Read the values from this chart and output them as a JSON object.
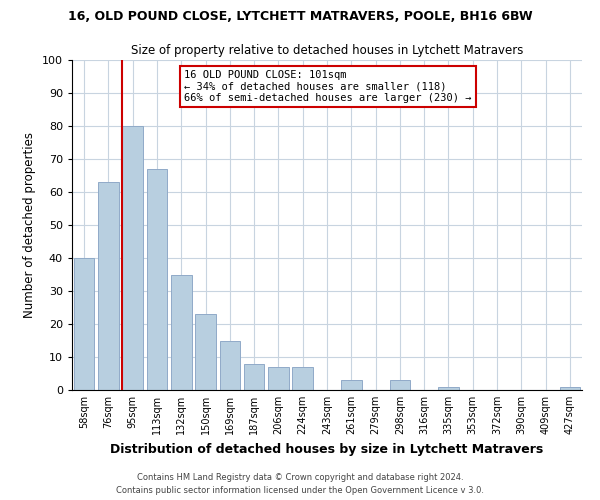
{
  "title1": "16, OLD POUND CLOSE, LYTCHETT MATRAVERS, POOLE, BH16 6BW",
  "title2": "Size of property relative to detached houses in Lytchett Matravers",
  "xlabel": "Distribution of detached houses by size in Lytchett Matravers",
  "ylabel": "Number of detached properties",
  "bar_labels": [
    "58sqm",
    "76sqm",
    "95sqm",
    "113sqm",
    "132sqm",
    "150sqm",
    "169sqm",
    "187sqm",
    "206sqm",
    "224sqm",
    "243sqm",
    "261sqm",
    "279sqm",
    "298sqm",
    "316sqm",
    "335sqm",
    "353sqm",
    "372sqm",
    "390sqm",
    "409sqm",
    "427sqm"
  ],
  "bar_values": [
    40,
    63,
    80,
    67,
    35,
    23,
    15,
    8,
    7,
    7,
    0,
    3,
    0,
    3,
    0,
    1,
    0,
    0,
    0,
    0,
    1
  ],
  "bar_color": "#b8cfe0",
  "bar_edge_color": "#90aac8",
  "ylim": [
    0,
    100
  ],
  "yticks": [
    0,
    10,
    20,
    30,
    40,
    50,
    60,
    70,
    80,
    90,
    100
  ],
  "vline_color": "#cc0000",
  "annotation_title": "16 OLD POUND CLOSE: 101sqm",
  "annotation_line1": "← 34% of detached houses are smaller (118)",
  "annotation_line2": "66% of semi-detached houses are larger (230) →",
  "annotation_box_color": "#ffffff",
  "annotation_box_edge": "#cc0000",
  "footer1": "Contains HM Land Registry data © Crown copyright and database right 2024.",
  "footer2": "Contains public sector information licensed under the Open Government Licence v 3.0.",
  "background_color": "#ffffff",
  "grid_color": "#c8d4e0"
}
